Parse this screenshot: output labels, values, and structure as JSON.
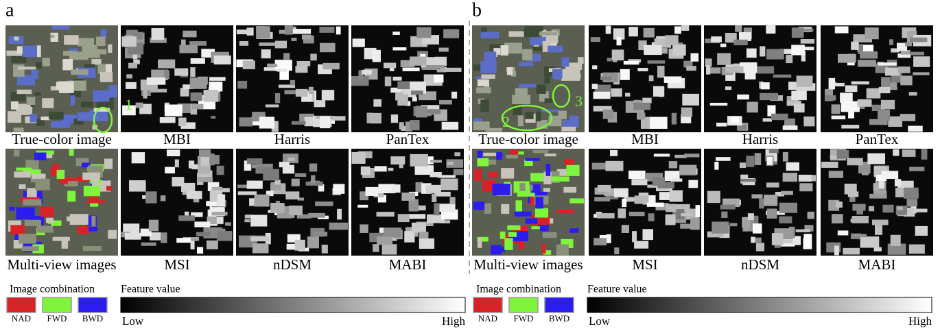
{
  "panels": [
    {
      "label": "a",
      "images": [
        {
          "caption": "True-color image"
        },
        {
          "caption": "MBI"
        },
        {
          "caption": "Harris"
        },
        {
          "caption": "PanTex"
        },
        {
          "caption": "Multi-view images"
        },
        {
          "caption": "MSI"
        },
        {
          "caption": "nDSM"
        },
        {
          "caption": "MABI"
        }
      ],
      "annotations": [
        "1"
      ],
      "legend": {
        "combination_title": "Image combination",
        "combinations": [
          {
            "name": "NAD",
            "color": "#d92128"
          },
          {
            "name": "FWD",
            "color": "#7ef53a"
          },
          {
            "name": "BWD",
            "color": "#2b1cf0"
          }
        ],
        "feature_title": "Feature value",
        "low": "Low",
        "high": "High"
      }
    },
    {
      "label": "b",
      "images": [
        {
          "caption": "True-color image"
        },
        {
          "caption": "MBI"
        },
        {
          "caption": "Harris"
        },
        {
          "caption": "PanTex"
        },
        {
          "caption": "Multi-view images"
        },
        {
          "caption": "MSI"
        },
        {
          "caption": "nDSM"
        },
        {
          "caption": "MABI"
        }
      ],
      "annotations": [
        "2",
        "3"
      ],
      "legend": {
        "combination_title": "Image combination",
        "combinations": [
          {
            "name": "NAD",
            "color": "#d92128"
          },
          {
            "name": "FWD",
            "color": "#7ef53a"
          },
          {
            "name": "BWD",
            "color": "#2b1cf0"
          }
        ],
        "feature_title": "Feature value",
        "low": "Low",
        "high": "High"
      }
    }
  ]
}
